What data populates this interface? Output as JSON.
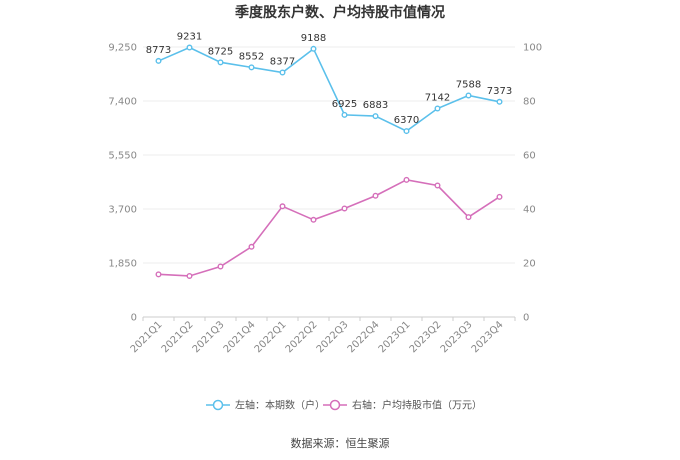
{
  "title": "季度股东户数、户均持股市值情况",
  "source": "数据来源：恒生聚源",
  "chart_data": {
    "type": "line",
    "categories": [
      "2021Q1",
      "2021Q2",
      "2021Q3",
      "2021Q4",
      "2022Q1",
      "2022Q2",
      "2022Q3",
      "2022Q4",
      "2023Q1",
      "2023Q2",
      "2023Q3",
      "2023Q4"
    ],
    "left_axis": {
      "min": 0,
      "max": 9250,
      "ticks": [
        "0",
        "1,850",
        "3,700",
        "5,550",
        "7,400",
        "9,250"
      ]
    },
    "right_axis": {
      "min": 0,
      "max": 100,
      "ticks": [
        "0",
        "20",
        "40",
        "60",
        "80",
        "100"
      ]
    },
    "series": [
      {
        "name": "左轴：本期数（户）",
        "axis": "left",
        "color": "#5bc0eb",
        "values": [
          8773,
          9231,
          8725,
          8552,
          8377,
          9188,
          6925,
          6883,
          6370,
          7142,
          7588,
          7373
        ],
        "labels": [
          "8773",
          "9231",
          "8725",
          "8552",
          "8377",
          "9188",
          "6925",
          "6883",
          "6370",
          "7142",
          "7588",
          "7373"
        ]
      },
      {
        "name": "右轴：户均持股市值（万元）",
        "axis": "right",
        "color": "#d56fba",
        "values": [
          15.8,
          15.2,
          18.7,
          26.0,
          41.0,
          36.0,
          40.2,
          44.9,
          50.8,
          48.7,
          37.0,
          44.5
        ]
      }
    ],
    "legend_position": "bottom",
    "grid": true
  }
}
